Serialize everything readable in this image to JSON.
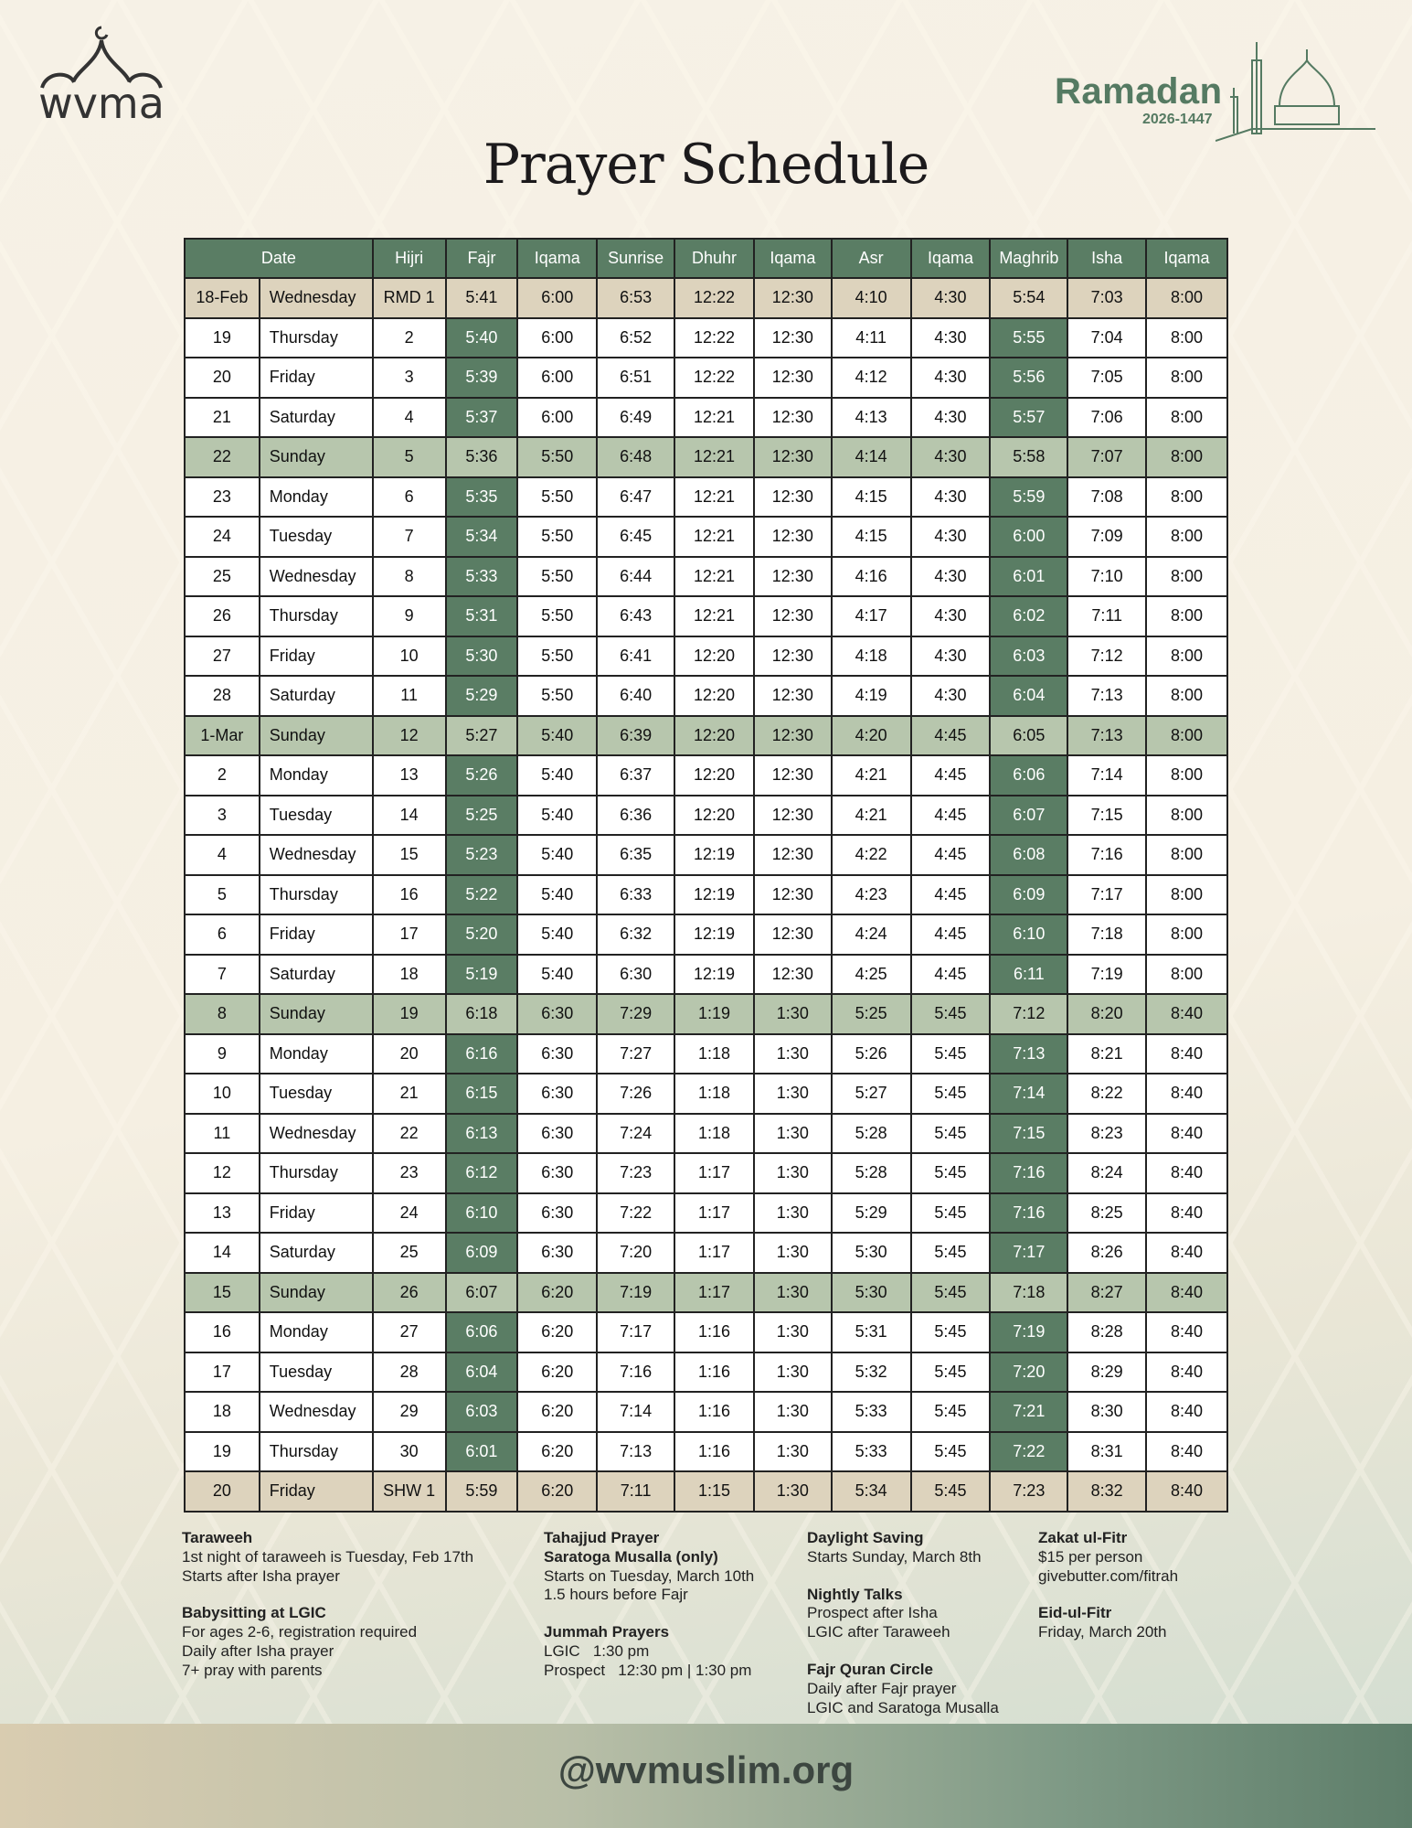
{
  "logo": {
    "text": "wvma"
  },
  "badge": {
    "title": "Ramadan",
    "year": "2026-1447"
  },
  "title": "Prayer Schedule",
  "table": {
    "headers": [
      "Date",
      "Hijri",
      "Fajr",
      "Iqama",
      "Sunrise",
      "Dhuhr",
      "Iqama",
      "Asr",
      "Iqama",
      "Maghrib",
      "Isha",
      "Iqama"
    ],
    "colors": {
      "header": "#5a7d64",
      "highlight": "#5a7d64",
      "sunday": "#b7c6ad",
      "special": "#ddd3bd"
    },
    "rows": [
      {
        "type": "beige",
        "c": [
          "18-Feb",
          "Wednesday",
          "RMD 1",
          "5:41",
          "6:00",
          "6:53",
          "12:22",
          "12:30",
          "4:10",
          "4:30",
          "5:54",
          "7:03",
          "8:00"
        ]
      },
      {
        "type": "norm",
        "c": [
          "19",
          "Thursday",
          "2",
          "5:40",
          "6:00",
          "6:52",
          "12:22",
          "12:30",
          "4:11",
          "4:30",
          "5:55",
          "7:04",
          "8:00"
        ]
      },
      {
        "type": "norm",
        "c": [
          "20",
          "Friday",
          "3",
          "5:39",
          "6:00",
          "6:51",
          "12:22",
          "12:30",
          "4:12",
          "4:30",
          "5:56",
          "7:05",
          "8:00"
        ]
      },
      {
        "type": "norm",
        "c": [
          "21",
          "Saturday",
          "4",
          "5:37",
          "6:00",
          "6:49",
          "12:21",
          "12:30",
          "4:13",
          "4:30",
          "5:57",
          "7:06",
          "8:00"
        ]
      },
      {
        "type": "sun",
        "c": [
          "22",
          "Sunday",
          "5",
          "5:36",
          "5:50",
          "6:48",
          "12:21",
          "12:30",
          "4:14",
          "4:30",
          "5:58",
          "7:07",
          "8:00"
        ]
      },
      {
        "type": "norm",
        "c": [
          "23",
          "Monday",
          "6",
          "5:35",
          "5:50",
          "6:47",
          "12:21",
          "12:30",
          "4:15",
          "4:30",
          "5:59",
          "7:08",
          "8:00"
        ]
      },
      {
        "type": "norm",
        "c": [
          "24",
          "Tuesday",
          "7",
          "5:34",
          "5:50",
          "6:45",
          "12:21",
          "12:30",
          "4:15",
          "4:30",
          "6:00",
          "7:09",
          "8:00"
        ]
      },
      {
        "type": "norm",
        "c": [
          "25",
          "Wednesday",
          "8",
          "5:33",
          "5:50",
          "6:44",
          "12:21",
          "12:30",
          "4:16",
          "4:30",
          "6:01",
          "7:10",
          "8:00"
        ]
      },
      {
        "type": "norm",
        "c": [
          "26",
          "Thursday",
          "9",
          "5:31",
          "5:50",
          "6:43",
          "12:21",
          "12:30",
          "4:17",
          "4:30",
          "6:02",
          "7:11",
          "8:00"
        ]
      },
      {
        "type": "norm",
        "c": [
          "27",
          "Friday",
          "10",
          "5:30",
          "5:50",
          "6:41",
          "12:20",
          "12:30",
          "4:18",
          "4:30",
          "6:03",
          "7:12",
          "8:00"
        ]
      },
      {
        "type": "norm",
        "c": [
          "28",
          "Saturday",
          "11",
          "5:29",
          "5:50",
          "6:40",
          "12:20",
          "12:30",
          "4:19",
          "4:30",
          "6:04",
          "7:13",
          "8:00"
        ]
      },
      {
        "type": "sun",
        "c": [
          "1-Mar",
          "Sunday",
          "12",
          "5:27",
          "5:40",
          "6:39",
          "12:20",
          "12:30",
          "4:20",
          "4:45",
          "6:05",
          "7:13",
          "8:00"
        ]
      },
      {
        "type": "norm",
        "c": [
          "2",
          "Monday",
          "13",
          "5:26",
          "5:40",
          "6:37",
          "12:20",
          "12:30",
          "4:21",
          "4:45",
          "6:06",
          "7:14",
          "8:00"
        ]
      },
      {
        "type": "norm",
        "c": [
          "3",
          "Tuesday",
          "14",
          "5:25",
          "5:40",
          "6:36",
          "12:20",
          "12:30",
          "4:21",
          "4:45",
          "6:07",
          "7:15",
          "8:00"
        ]
      },
      {
        "type": "norm",
        "c": [
          "4",
          "Wednesday",
          "15",
          "5:23",
          "5:40",
          "6:35",
          "12:19",
          "12:30",
          "4:22",
          "4:45",
          "6:08",
          "7:16",
          "8:00"
        ]
      },
      {
        "type": "norm",
        "c": [
          "5",
          "Thursday",
          "16",
          "5:22",
          "5:40",
          "6:33",
          "12:19",
          "12:30",
          "4:23",
          "4:45",
          "6:09",
          "7:17",
          "8:00"
        ]
      },
      {
        "type": "norm",
        "c": [
          "6",
          "Friday",
          "17",
          "5:20",
          "5:40",
          "6:32",
          "12:19",
          "12:30",
          "4:24",
          "4:45",
          "6:10",
          "7:18",
          "8:00"
        ]
      },
      {
        "type": "norm",
        "c": [
          "7",
          "Saturday",
          "18",
          "5:19",
          "5:40",
          "6:30",
          "12:19",
          "12:30",
          "4:25",
          "4:45",
          "6:11",
          "7:19",
          "8:00"
        ]
      },
      {
        "type": "sun",
        "c": [
          "8",
          "Sunday",
          "19",
          "6:18",
          "6:30",
          "7:29",
          "1:19",
          "1:30",
          "5:25",
          "5:45",
          "7:12",
          "8:20",
          "8:40"
        ]
      },
      {
        "type": "norm",
        "c": [
          "9",
          "Monday",
          "20",
          "6:16",
          "6:30",
          "7:27",
          "1:18",
          "1:30",
          "5:26",
          "5:45",
          "7:13",
          "8:21",
          "8:40"
        ]
      },
      {
        "type": "norm",
        "c": [
          "10",
          "Tuesday",
          "21",
          "6:15",
          "6:30",
          "7:26",
          "1:18",
          "1:30",
          "5:27",
          "5:45",
          "7:14",
          "8:22",
          "8:40"
        ]
      },
      {
        "type": "norm",
        "c": [
          "11",
          "Wednesday",
          "22",
          "6:13",
          "6:30",
          "7:24",
          "1:18",
          "1:30",
          "5:28",
          "5:45",
          "7:15",
          "8:23",
          "8:40"
        ]
      },
      {
        "type": "norm",
        "c": [
          "12",
          "Thursday",
          "23",
          "6:12",
          "6:30",
          "7:23",
          "1:17",
          "1:30",
          "5:28",
          "5:45",
          "7:16",
          "8:24",
          "8:40"
        ]
      },
      {
        "type": "norm",
        "c": [
          "13",
          "Friday",
          "24",
          "6:10",
          "6:30",
          "7:22",
          "1:17",
          "1:30",
          "5:29",
          "5:45",
          "7:16",
          "8:25",
          "8:40"
        ]
      },
      {
        "type": "norm",
        "c": [
          "14",
          "Saturday",
          "25",
          "6:09",
          "6:30",
          "7:20",
          "1:17",
          "1:30",
          "5:30",
          "5:45",
          "7:17",
          "8:26",
          "8:40"
        ]
      },
      {
        "type": "sun",
        "c": [
          "15",
          "Sunday",
          "26",
          "6:07",
          "6:20",
          "7:19",
          "1:17",
          "1:30",
          "5:30",
          "5:45",
          "7:18",
          "8:27",
          "8:40"
        ]
      },
      {
        "type": "norm",
        "c": [
          "16",
          "Monday",
          "27",
          "6:06",
          "6:20",
          "7:17",
          "1:16",
          "1:30",
          "5:31",
          "5:45",
          "7:19",
          "8:28",
          "8:40"
        ]
      },
      {
        "type": "norm",
        "c": [
          "17",
          "Tuesday",
          "28",
          "6:04",
          "6:20",
          "7:16",
          "1:16",
          "1:30",
          "5:32",
          "5:45",
          "7:20",
          "8:29",
          "8:40"
        ]
      },
      {
        "type": "norm",
        "c": [
          "18",
          "Wednesday",
          "29",
          "6:03",
          "6:20",
          "7:14",
          "1:16",
          "1:30",
          "5:33",
          "5:45",
          "7:21",
          "8:30",
          "8:40"
        ]
      },
      {
        "type": "norm",
        "c": [
          "19",
          "Thursday",
          "30",
          "6:01",
          "6:20",
          "7:13",
          "1:16",
          "1:30",
          "5:33",
          "5:45",
          "7:22",
          "8:31",
          "8:40"
        ]
      },
      {
        "type": "beige",
        "c": [
          "20",
          "Friday",
          "SHW 1",
          "5:59",
          "6:20",
          "7:11",
          "1:15",
          "1:30",
          "5:34",
          "5:45",
          "7:23",
          "8:32",
          "8:40"
        ]
      }
    ]
  },
  "notes": [
    [
      {
        "heads": [
          "Taraweeh"
        ],
        "lines": [
          "1st night of taraweeh is Tuesday, Feb 17th",
          "Starts after Isha prayer"
        ]
      },
      {
        "heads": [
          "Babysitting at LGIC"
        ],
        "lines": [
          "For ages 2-6, registration required",
          "Daily after Isha prayer",
          "7+ pray with parents"
        ]
      }
    ],
    [
      {
        "heads": [
          "Tahajjud Prayer",
          "Saratoga Musalla (only)"
        ],
        "lines": [
          "Starts on Tuesday, March 10th",
          "1.5 hours before Fajr"
        ]
      },
      {
        "heads": [
          "Jummah Prayers"
        ],
        "lines": [
          "LGIC   1:30 pm",
          "Prospect   12:30 pm | 1:30 pm"
        ]
      }
    ],
    [
      {
        "heads": [
          "Daylight Saving"
        ],
        "lines": [
          "Starts Sunday, March 8th"
        ]
      },
      {
        "heads": [
          "Nightly Talks"
        ],
        "lines": [
          "Prospect after Isha",
          "LGIC after Taraweeh"
        ]
      },
      {
        "heads": [
          "Fajr Quran Circle"
        ],
        "lines": [
          "Daily after Fajr prayer",
          "LGIC and Saratoga Musalla"
        ]
      }
    ],
    [
      {
        "heads": [
          "Zakat ul-Fitr"
        ],
        "lines": [
          "$15 per person"
        ],
        "link": "givebutter.com/fitrah"
      },
      {
        "heads": [
          "Eid-ul-Fitr"
        ],
        "lines": [
          "Friday, March 20th"
        ]
      }
    ]
  ],
  "footer": {
    "handle": "@wvmuslim.org"
  }
}
